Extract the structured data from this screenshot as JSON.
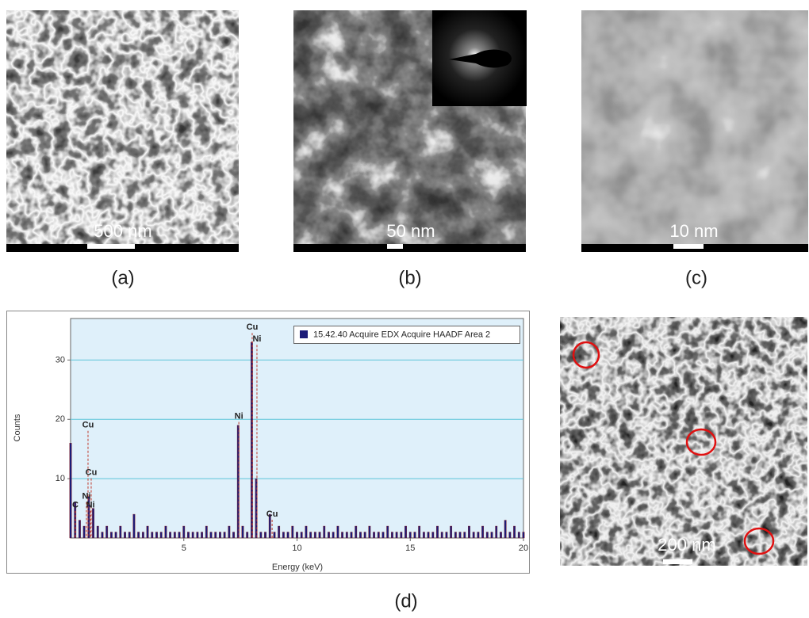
{
  "panels": [
    {
      "caption": "(a)",
      "scale_bar": "500 nm"
    },
    {
      "caption": "(b)",
      "scale_bar": "50 nm"
    },
    {
      "caption": "(c)",
      "scale_bar": "10 nm"
    },
    {
      "scale_bar": "200 nm"
    }
  ],
  "caption_d": "(d)",
  "chart_data": {
    "type": "bar",
    "x_label": "Energy (keV)",
    "y_label": "Counts",
    "legend": "15.42.40 Acquire EDX Acquire HAADF Area 2",
    "color": "#1b1b78",
    "grid": true,
    "xlim": [
      0,
      20
    ],
    "ylim": [
      0,
      37
    ],
    "xticks": [
      5,
      10,
      15,
      20
    ],
    "yticks": [
      10,
      20,
      30
    ],
    "x": [
      0,
      0.2,
      0.4,
      0.6,
      0.8,
      1,
      1.2,
      1.4,
      1.6,
      1.8,
      2,
      2.2,
      2.4,
      2.6,
      2.8,
      3,
      3.2,
      3.4,
      3.6,
      3.8,
      4,
      4.2,
      4.4,
      4.6,
      4.8,
      5,
      5.2,
      5.4,
      5.6,
      5.8,
      6,
      6.2,
      6.4,
      6.6,
      6.8,
      7,
      7.2,
      7.4,
      7.6,
      7.8,
      8,
      8.2,
      8.4,
      8.6,
      8.8,
      9,
      9.2,
      9.4,
      9.6,
      9.8,
      10,
      10.2,
      10.4,
      10.6,
      10.8,
      11,
      11.2,
      11.4,
      11.6,
      11.8,
      12,
      12.2,
      12.4,
      12.6,
      12.8,
      13,
      13.2,
      13.4,
      13.6,
      13.8,
      14,
      14.2,
      14.4,
      14.6,
      14.8,
      15,
      15.2,
      15.4,
      15.6,
      15.8,
      16,
      16.2,
      16.4,
      16.6,
      16.8,
      17,
      17.2,
      17.4,
      17.6,
      17.8,
      18,
      18.2,
      18.4,
      18.6,
      18.8,
      19,
      19.2,
      19.4,
      19.6,
      19.8,
      20
    ],
    "values": [
      16,
      6,
      3,
      2,
      7,
      5,
      2,
      1,
      2,
      1,
      1,
      2,
      1,
      1,
      4,
      1,
      1,
      2,
      1,
      1,
      1,
      2,
      1,
      1,
      1,
      2,
      1,
      1,
      1,
      1,
      2,
      1,
      1,
      1,
      1,
      2,
      1,
      19,
      2,
      1,
      33,
      10,
      1,
      1,
      4,
      1,
      2,
      1,
      1,
      2,
      1,
      1,
      2,
      1,
      1,
      1,
      2,
      1,
      1,
      2,
      1,
      1,
      1,
      2,
      1,
      1,
      2,
      1,
      1,
      1,
      2,
      1,
      1,
      1,
      2,
      1,
      1,
      2,
      1,
      1,
      1,
      2,
      1,
      1,
      2,
      1,
      1,
      1,
      2,
      1,
      1,
      2,
      1,
      1,
      2,
      1,
      3,
      1,
      2,
      1,
      1
    ],
    "annotations": [
      {
        "label": "C",
        "energy": 0.21,
        "level": 5.5
      },
      {
        "label": "Cu",
        "energy": 0.77,
        "level": 19
      },
      {
        "label": "Cu",
        "energy": 0.91,
        "level": 11
      },
      {
        "label": "Ni",
        "energy": 0.7,
        "level": 7
      },
      {
        "label": "Ni",
        "energy": 0.88,
        "level": 5.5
      },
      {
        "label": "Ni",
        "energy": 7.43,
        "level": 20.5
      },
      {
        "label": "Cu",
        "energy": 8.02,
        "level": 35.5
      },
      {
        "label": "Ni",
        "energy": 8.23,
        "level": 33.5
      },
      {
        "label": "Cu",
        "energy": 8.9,
        "level": 4
      }
    ]
  }
}
